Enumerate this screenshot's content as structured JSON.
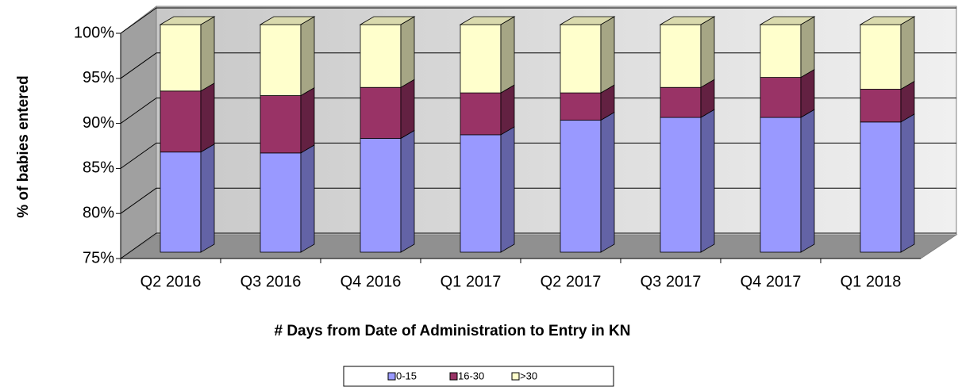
{
  "chart_data": {
    "type": "stacked_bar_3d",
    "xlabel": "# Days from Date of Administration  to Entry in KN",
    "ylabel": "% of babies entered",
    "categories": [
      "Q2 2016",
      "Q3 2016",
      "Q4 2016",
      "Q1 2017",
      "Q2 2017",
      "Q3 2017",
      "Q4 2017",
      "Q1 2018"
    ],
    "series": [
      {
        "name": "0-15",
        "color": "#9999ff",
        "values": [
          86.0,
          85.9,
          87.5,
          87.9,
          89.5,
          89.8,
          89.8,
          89.3
        ]
      },
      {
        "name": "16-30",
        "color": "#993366",
        "values": [
          6.7,
          6.3,
          5.6,
          4.6,
          3.0,
          3.3,
          4.4,
          3.6
        ]
      },
      {
        "name": ">30",
        "color": "#ffffcc",
        "values": [
          7.3,
          7.8,
          6.9,
          7.5,
          7.5,
          6.9,
          5.8,
          7.1
        ]
      }
    ],
    "ylim": [
      75,
      100
    ],
    "yticks": [
      {
        "value": 75,
        "label": "75%"
      },
      {
        "value": 80,
        "label": "80%"
      },
      {
        "value": 85,
        "label": "85%"
      },
      {
        "value": 90,
        "label": "90%"
      },
      {
        "value": 95,
        "label": "95%"
      },
      {
        "value": 100,
        "label": "100%"
      }
    ],
    "grid": true
  }
}
